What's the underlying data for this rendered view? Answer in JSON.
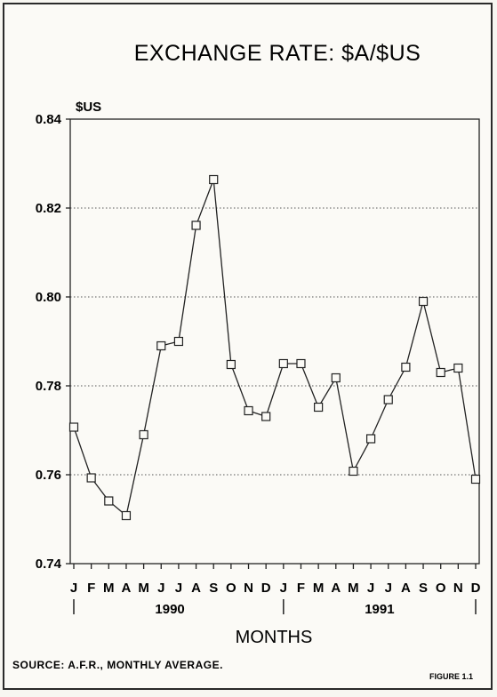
{
  "chart_data": {
    "type": "line",
    "title": "EXCHANGE RATE: $A/$US",
    "ylabel": "$US",
    "xlabel": "MONTHS",
    "ylim": [
      0.74,
      0.84
    ],
    "yticks": [
      "0.74",
      "0.76",
      "0.78",
      "0.80",
      "0.82",
      "0.84"
    ],
    "grid": "horizontal dotted",
    "marker": "hollow square",
    "categories": [
      "J",
      "F",
      "M",
      "A",
      "M",
      "J",
      "J",
      "A",
      "S",
      "O",
      "N",
      "D",
      "J",
      "F",
      "M",
      "A",
      "M",
      "J",
      "J",
      "A",
      "S",
      "O",
      "N",
      "D"
    ],
    "years": [
      "1990",
      "1991"
    ],
    "series": [
      {
        "values": [
          0.7707,
          0.7593,
          0.7541,
          0.7508,
          0.769,
          0.789,
          0.79,
          0.8161,
          0.8264,
          0.7848,
          0.7744,
          0.7731,
          0.785,
          0.785,
          0.7752,
          0.7818,
          0.7608,
          0.7681,
          0.7769,
          0.7842,
          0.799,
          0.783,
          0.784,
          0.759
        ]
      }
    ]
  },
  "footer": {
    "source": "SOURCE: A.F.R., MONTHLY AVERAGE.",
    "figure": "FIGURE 1.1"
  }
}
